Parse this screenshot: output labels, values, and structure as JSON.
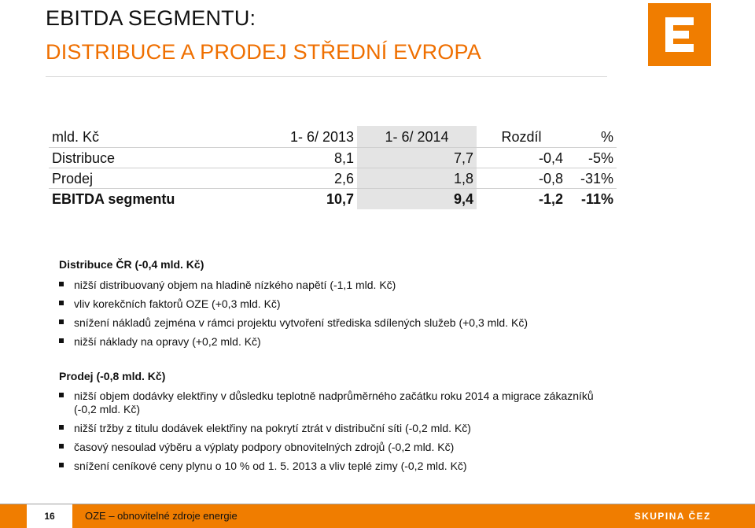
{
  "header": {
    "title_line1": "EBITDA SEGMENTU:",
    "title_line2": "DISTRIBUCE A PRODEJ STŘEDNÍ EVROPA",
    "accent_color": "#ef6f00"
  },
  "logo": {
    "icon": "cez-e-logo-icon",
    "color": "#f07d00"
  },
  "table": {
    "columns": [
      "mld. Kč",
      "1- 6/ 2013",
      "1- 6/ 2014",
      "Rozdíl",
      "%"
    ],
    "rows": [
      [
        "Distribuce",
        "8,1",
        "7,7",
        "-0,4",
        "-5%"
      ],
      [
        "Prodej",
        "2,6",
        "1,8",
        "-0,8",
        "-31%"
      ],
      [
        "EBITDA segmentu",
        "10,7",
        "9,4",
        "-1,2",
        "-11%"
      ]
    ]
  },
  "sections": [
    {
      "heading": "Distribuce ČR (-0,4 mld. Kč)",
      "bullets": [
        "nižší distribuovaný objem na hladině nízkého napětí (-1,1 mld. Kč)",
        "vliv korekčních faktorů OZE (+0,3 mld. Kč)",
        "snížení nákladů zejména v rámci projektu vytvoření střediska sdílených služeb (+0,3 mld. Kč)",
        "nižší náklady na opravy (+0,2 mld. Kč)"
      ]
    },
    {
      "heading": "Prodej (-0,8 mld. Kč)",
      "bullets": [
        "nižší objem dodávky elektřiny v důsledku teplotně nadprůměrného začátku roku 2014 a migrace zákazníků (-0,2 mld. Kč)",
        "nižší tržby z titulu dodávek elektřiny na pokrytí ztrát v distribuční síti (-0,2 mld. Kč)",
        "časový nesoulad výběru a výplaty podpory obnovitelných zdrojů (-0,2 mld. Kč)",
        "snížení ceníkové ceny plynu o 10 % od 1. 5. 2013 a vliv teplé zimy (-0,2 mld. Kč)"
      ]
    }
  ],
  "footer": {
    "page_number": "16",
    "text": "OZE – obnovitelné zdroje energie",
    "brand": "SKUPINA ČEZ",
    "bar_color": "#f07d00"
  }
}
